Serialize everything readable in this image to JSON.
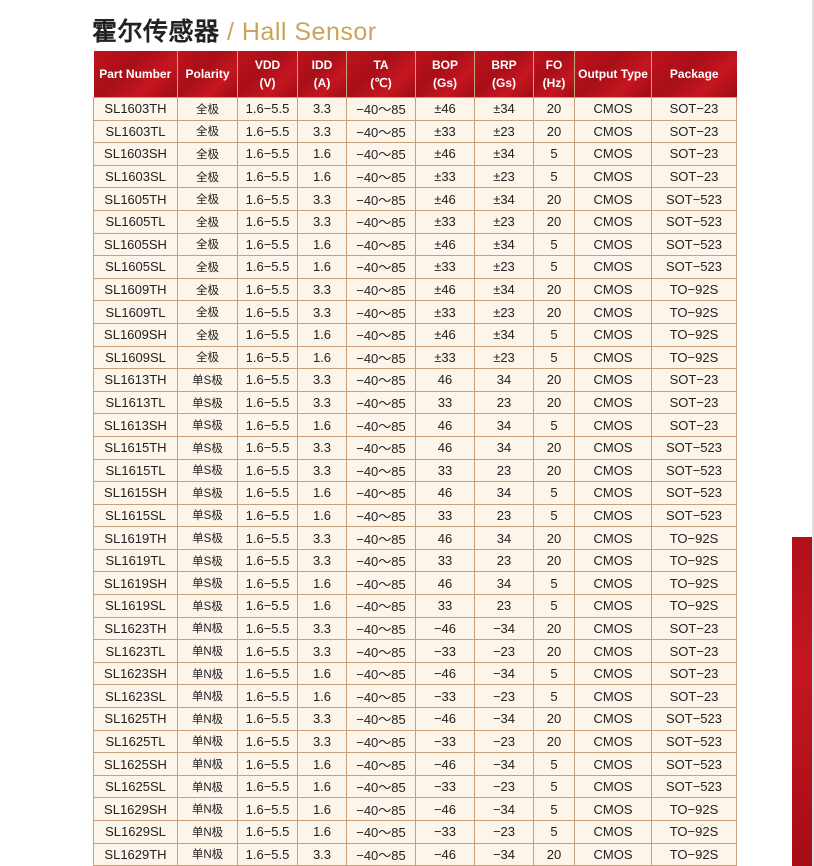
{
  "title": {
    "cn": "霍尔传感器",
    "sep": " / ",
    "en": "Hall Sensor"
  },
  "columns": [
    [
      "Part Number"
    ],
    [
      "Polarity"
    ],
    [
      "VDD",
      "(V)"
    ],
    [
      "IDD",
      "(A)"
    ],
    [
      "TA",
      "(℃)"
    ],
    [
      "BOP",
      "(Gs)"
    ],
    [
      "BRP",
      "(Gs)"
    ],
    [
      "FO",
      "(Hz)"
    ],
    [
      "Output Type"
    ],
    [
      "Package"
    ]
  ],
  "rows": [
    [
      "SL1603TH",
      "全极",
      "1.6−5.5",
      "3.3",
      "−40～85",
      "±46",
      "±34",
      "20",
      "CMOS",
      "SOT−23"
    ],
    [
      "SL1603TL",
      "全极",
      "1.6−5.5",
      "3.3",
      "−40～85",
      "±33",
      "±23",
      "20",
      "CMOS",
      "SOT−23"
    ],
    [
      "SL1603SH",
      "全极",
      "1.6−5.5",
      "1.6",
      "−40～85",
      "±46",
      "±34",
      "5",
      "CMOS",
      "SOT−23"
    ],
    [
      "SL1603SL",
      "全极",
      "1.6−5.5",
      "1.6",
      "−40～85",
      "±33",
      "±23",
      "5",
      "CMOS",
      "SOT−23"
    ],
    [
      "SL1605TH",
      "全极",
      "1.6−5.5",
      "3.3",
      "−40～85",
      "±46",
      "±34",
      "20",
      "CMOS",
      "SOT−523"
    ],
    [
      "SL1605TL",
      "全极",
      "1.6−5.5",
      "3.3",
      "−40～85",
      "±33",
      "±23",
      "20",
      "CMOS",
      "SOT−523"
    ],
    [
      "SL1605SH",
      "全极",
      "1.6−5.5",
      "1.6",
      "−40～85",
      "±46",
      "±34",
      "5",
      "CMOS",
      "SOT−523"
    ],
    [
      "SL1605SL",
      "全极",
      "1.6−5.5",
      "1.6",
      "−40～85",
      "±33",
      "±23",
      "5",
      "CMOS",
      "SOT−523"
    ],
    [
      "SL1609TH",
      "全极",
      "1.6−5.5",
      "3.3",
      "−40～85",
      "±46",
      "±34",
      "20",
      "CMOS",
      "TO−92S"
    ],
    [
      "SL1609TL",
      "全极",
      "1.6−5.5",
      "3.3",
      "−40～85",
      "±33",
      "±23",
      "20",
      "CMOS",
      "TO−92S"
    ],
    [
      "SL1609SH",
      "全极",
      "1.6−5.5",
      "1.6",
      "−40～85",
      "±46",
      "±34",
      "5",
      "CMOS",
      "TO−92S"
    ],
    [
      "SL1609SL",
      "全极",
      "1.6−5.5",
      "1.6",
      "−40～85",
      "±33",
      "±23",
      "5",
      "CMOS",
      "TO−92S"
    ],
    [
      "SL1613TH",
      "单S极",
      "1.6−5.5",
      "3.3",
      "−40～85",
      "46",
      "34",
      "20",
      "CMOS",
      "SOT−23"
    ],
    [
      "SL1613TL",
      "单S极",
      "1.6−5.5",
      "3.3",
      "−40～85",
      "33",
      "23",
      "20",
      "CMOS",
      "SOT−23"
    ],
    [
      "SL1613SH",
      "单S极",
      "1.6−5.5",
      "1.6",
      "−40～85",
      "46",
      "34",
      "5",
      "CMOS",
      "SOT−23"
    ],
    [
      "SL1615TH",
      "单S极",
      "1.6−5.5",
      "3.3",
      "−40～85",
      "46",
      "34",
      "20",
      "CMOS",
      "SOT−523"
    ],
    [
      "SL1615TL",
      "单S极",
      "1.6−5.5",
      "3.3",
      "−40～85",
      "33",
      "23",
      "20",
      "CMOS",
      "SOT−523"
    ],
    [
      "SL1615SH",
      "单S极",
      "1.6−5.5",
      "1.6",
      "−40～85",
      "46",
      "34",
      "5",
      "CMOS",
      "SOT−523"
    ],
    [
      "SL1615SL",
      "单S极",
      "1.6−5.5",
      "1.6",
      "−40～85",
      "33",
      "23",
      "5",
      "CMOS",
      "SOT−523"
    ],
    [
      "SL1619TH",
      "单S极",
      "1.6−5.5",
      "3.3",
      "−40～85",
      "46",
      "34",
      "20",
      "CMOS",
      "TO−92S"
    ],
    [
      "SL1619TL",
      "单S极",
      "1.6−5.5",
      "3.3",
      "−40～85",
      "33",
      "23",
      "20",
      "CMOS",
      "TO−92S"
    ],
    [
      "SL1619SH",
      "单S极",
      "1.6−5.5",
      "1.6",
      "−40～85",
      "46",
      "34",
      "5",
      "CMOS",
      "TO−92S"
    ],
    [
      "SL1619SL",
      "单S极",
      "1.6−5.5",
      "1.6",
      "−40～85",
      "33",
      "23",
      "5",
      "CMOS",
      "TO−92S"
    ],
    [
      "SL1623TH",
      "单N极",
      "1.6−5.5",
      "3.3",
      "−40～85",
      "−46",
      "−34",
      "20",
      "CMOS",
      "SOT−23"
    ],
    [
      "SL1623TL",
      "单N极",
      "1.6−5.5",
      "3.3",
      "−40～85",
      "−33",
      "−23",
      "20",
      "CMOS",
      "SOT−23"
    ],
    [
      "SL1623SH",
      "单N极",
      "1.6−5.5",
      "1.6",
      "−40～85",
      "−46",
      "−34",
      "5",
      "CMOS",
      "SOT−23"
    ],
    [
      "SL1623SL",
      "单N极",
      "1.6−5.5",
      "1.6",
      "−40～85",
      "−33",
      "−23",
      "5",
      "CMOS",
      "SOT−23"
    ],
    [
      "SL1625TH",
      "单N极",
      "1.6−5.5",
      "3.3",
      "−40～85",
      "−46",
      "−34",
      "20",
      "CMOS",
      "SOT−523"
    ],
    [
      "SL1625TL",
      "单N极",
      "1.6−5.5",
      "3.3",
      "−40～85",
      "−33",
      "−23",
      "20",
      "CMOS",
      "SOT−523"
    ],
    [
      "SL1625SH",
      "单N极",
      "1.6−5.5",
      "1.6",
      "−40～85",
      "−46",
      "−34",
      "5",
      "CMOS",
      "SOT−523"
    ],
    [
      "SL1625SL",
      "单N极",
      "1.6−5.5",
      "1.6",
      "−40～85",
      "−33",
      "−23",
      "5",
      "CMOS",
      "SOT−523"
    ],
    [
      "SL1629SH",
      "单N极",
      "1.6−5.5",
      "1.6",
      "−40～85",
      "−46",
      "−34",
      "5",
      "CMOS",
      "TO−92S"
    ],
    [
      "SL1629SL",
      "单N极",
      "1.6−5.5",
      "1.6",
      "−40～85",
      "−33",
      "−23",
      "5",
      "CMOS",
      "TO−92S"
    ],
    [
      "SL1629TH",
      "单N极",
      "1.6−5.5",
      "3.3",
      "−40～85",
      "−46",
      "−34",
      "20",
      "CMOS",
      "TO−92S"
    ]
  ],
  "colors": {
    "header": "#b8111b",
    "row": "#fdf4ea",
    "border": "#c8a07c",
    "title_en": "#c9a45a"
  }
}
